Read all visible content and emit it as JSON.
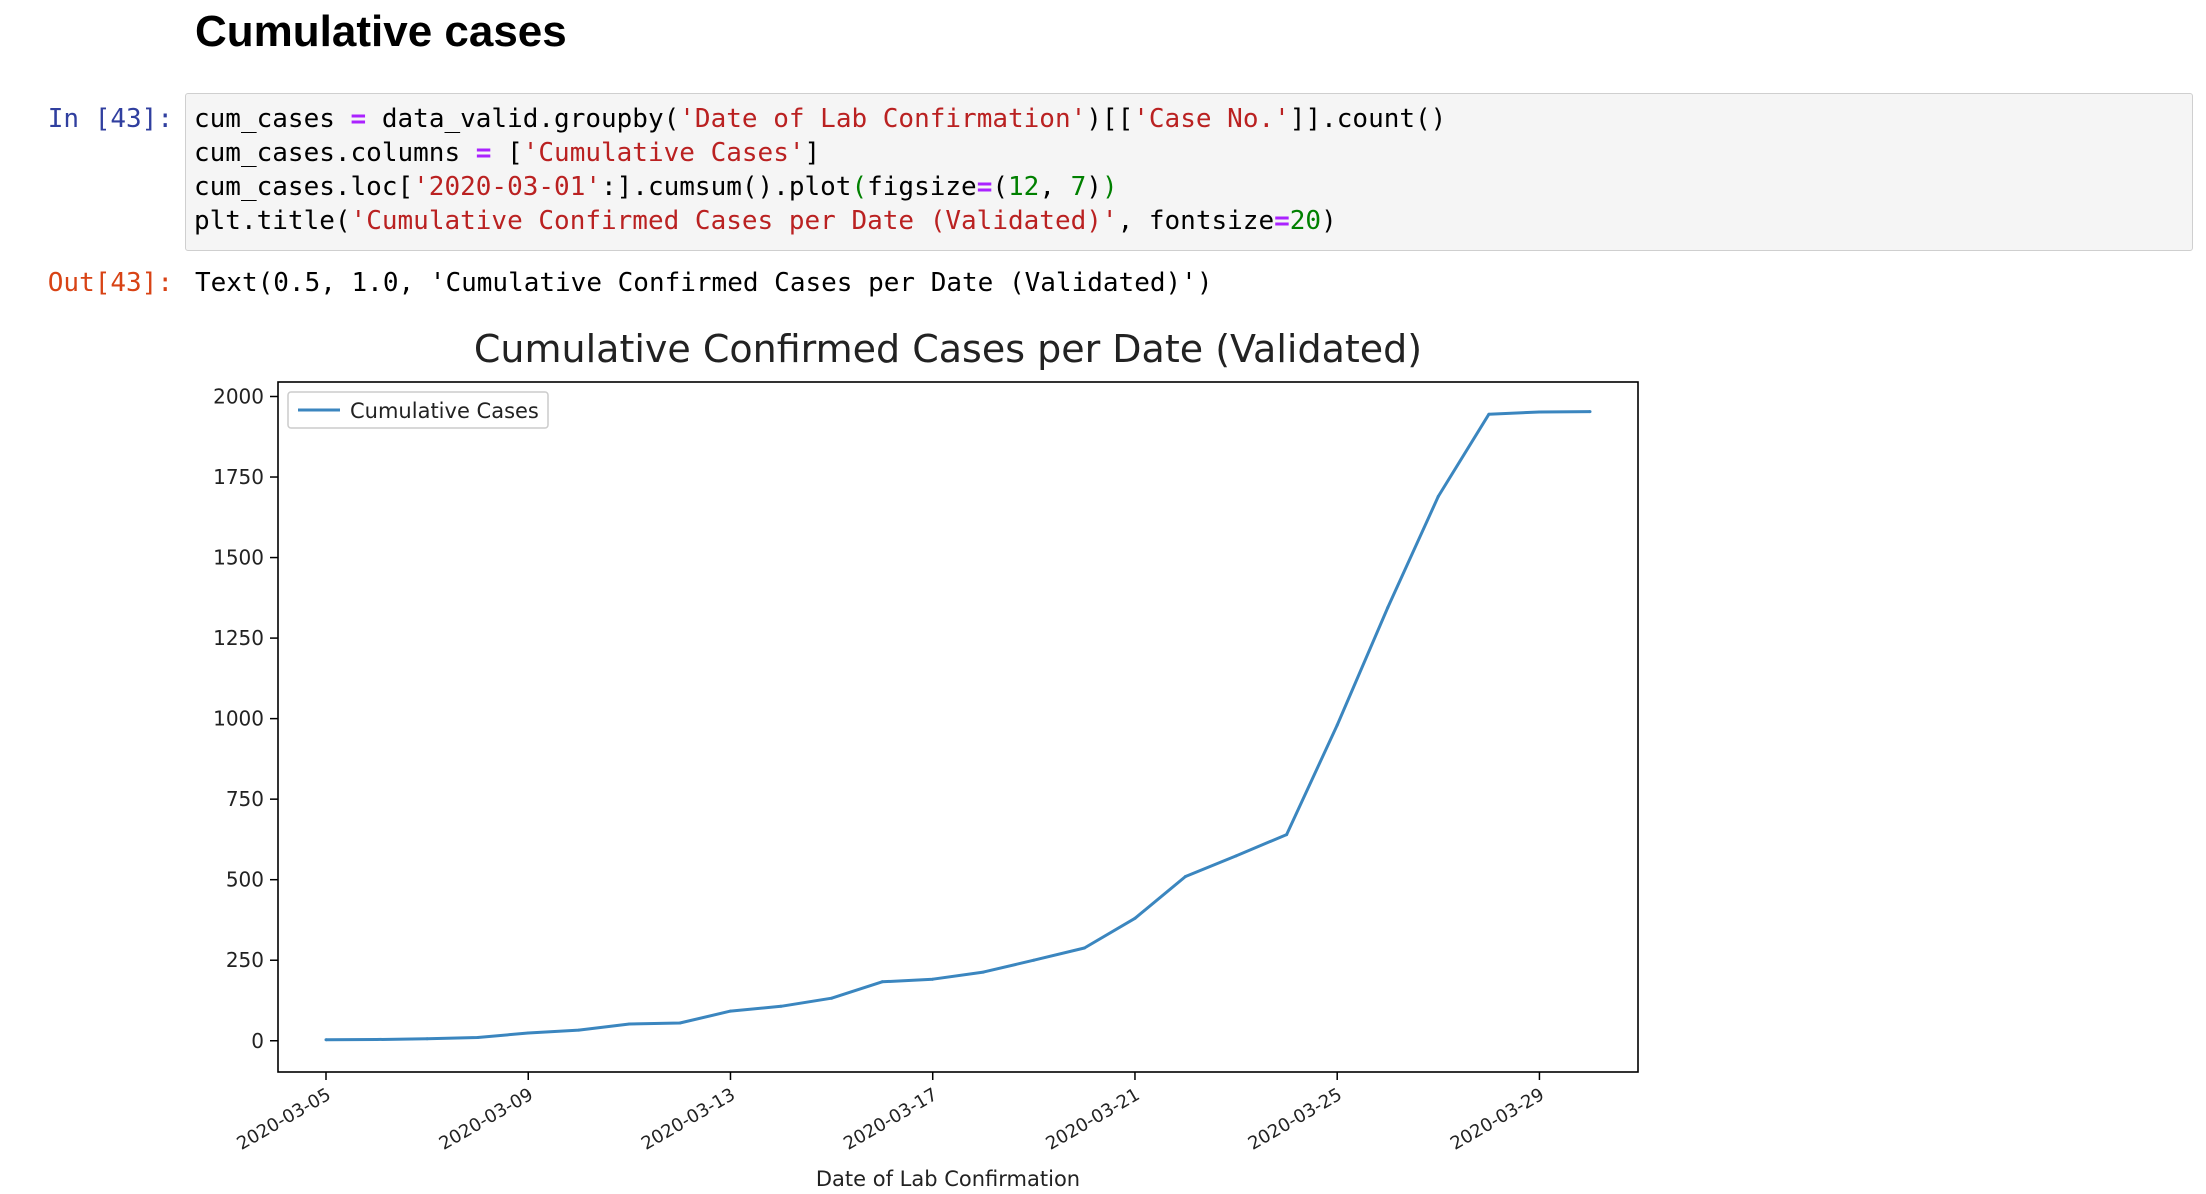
{
  "notebook": {
    "section_heading": "Cumulative cases",
    "input_prompt": "In [43]:",
    "output_prompt": "Out[43]:",
    "code_lines": [
      [
        {
          "t": "cum_cases ",
          "k": ""
        },
        {
          "t": "=",
          "k": "op"
        },
        {
          "t": " data_valid.groupby(",
          "k": ""
        },
        {
          "t": "'Date of Lab Confirmation'",
          "k": "str"
        },
        {
          "t": ")[[",
          "k": ""
        },
        {
          "t": "'Case No.'",
          "k": "str"
        },
        {
          "t": "]].count()",
          "k": ""
        }
      ],
      [
        {
          "t": "cum_cases.columns ",
          "k": ""
        },
        {
          "t": "=",
          "k": "op"
        },
        {
          "t": " [",
          "k": ""
        },
        {
          "t": "'Cumulative Cases'",
          "k": "str"
        },
        {
          "t": "]",
          "k": ""
        }
      ],
      [
        {
          "t": "cum_cases.loc[",
          "k": ""
        },
        {
          "t": "'2020-03-01'",
          "k": "str"
        },
        {
          "t": ":].cumsum().plot",
          "k": ""
        },
        {
          "t": "(",
          "k": "kw"
        },
        {
          "t": "figsize",
          "k": ""
        },
        {
          "t": "=",
          "k": "op"
        },
        {
          "t": "(",
          "k": ""
        },
        {
          "t": "12",
          "k": "num"
        },
        {
          "t": ", ",
          "k": ""
        },
        {
          "t": "7",
          "k": "num"
        },
        {
          "t": ")",
          "k": ""
        },
        {
          "t": ")",
          "k": "kw"
        }
      ],
      [
        {
          "t": "plt.title(",
          "k": ""
        },
        {
          "t": "'Cumulative Confirmed Cases per Date (Validated)'",
          "k": "str"
        },
        {
          "t": ", fontsize",
          "k": ""
        },
        {
          "t": "=",
          "k": "op"
        },
        {
          "t": "20",
          "k": "num"
        },
        {
          "t": ")",
          "k": ""
        }
      ]
    ],
    "output_text": "Text(0.5, 1.0, 'Cumulative Confirmed Cases per Date (Validated)')"
  },
  "colors": {
    "series": "#3b86bf",
    "string": "#ba2121",
    "operator": "#aa22ff",
    "number": "#008000",
    "in_prompt": "#303f9f",
    "out_prompt": "#d84315",
    "cell_bg": "#f5f5f5"
  },
  "chart_data": {
    "type": "line",
    "title": "Cumulative Confirmed Cases per Date (Validated)",
    "xlabel": "Date of Lab Confirmation",
    "ylabel": "",
    "x": [
      "2020-03-05",
      "2020-03-06",
      "2020-03-07",
      "2020-03-08",
      "2020-03-09",
      "2020-03-10",
      "2020-03-11",
      "2020-03-12",
      "2020-03-13",
      "2020-03-14",
      "2020-03-15",
      "2020-03-16",
      "2020-03-17",
      "2020-03-18",
      "2020-03-19",
      "2020-03-20",
      "2020-03-21",
      "2020-03-22",
      "2020-03-23",
      "2020-03-24",
      "2020-03-25",
      "2020-03-26",
      "2020-03-27",
      "2020-03-28",
      "2020-03-29",
      "2020-03-30"
    ],
    "series": [
      {
        "name": "Cumulative Cases",
        "values": [
          3,
          4,
          6,
          10,
          24,
          33,
          52,
          55,
          92,
          107,
          132,
          183,
          191,
          213,
          250,
          288,
          380,
          510,
          574,
          640,
          980,
          1345,
          1690,
          1945,
          1952,
          1953
        ]
      }
    ],
    "xticks": [
      "2020-03-05",
      "2020-03-09",
      "2020-03-13",
      "2020-03-17",
      "2020-03-21",
      "2020-03-25",
      "2020-03-29"
    ],
    "yticks": [
      0,
      250,
      500,
      750,
      1000,
      1250,
      1500,
      1750,
      2000
    ],
    "xlim": [
      "2020-03-05",
      "2020-03-30"
    ],
    "ylim": [
      -97,
      2045
    ],
    "grid": false,
    "legend": "upper-left"
  }
}
